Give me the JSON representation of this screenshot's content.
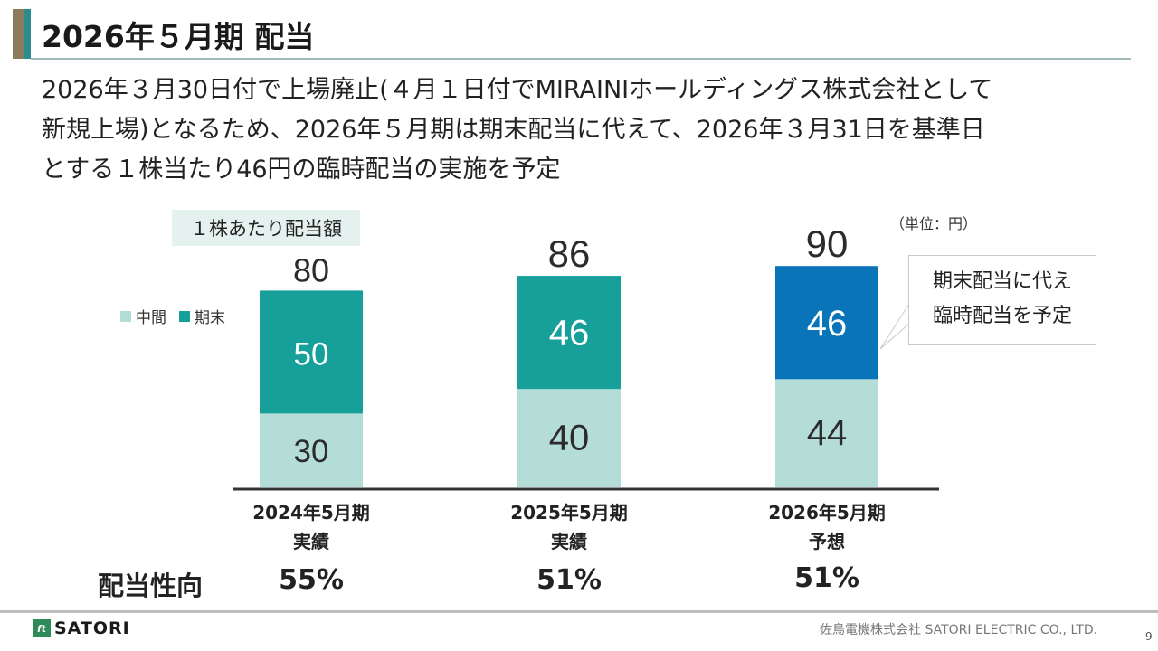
{
  "header": {
    "title": "2026年５月期 配当"
  },
  "lead_lines": [
    "2026年３月30日付で上場廃止(４月１日付でMIRAINIホールディングス株式会社として",
    "新規上場)となるため、2026年５月期は期末配当に代えて、2026年３月31日を基準日",
    "とする１株当たり46円の臨時配当の実施を予定"
  ],
  "chart_data": {
    "type": "bar",
    "stacked": true,
    "title": "１株あたり配当額",
    "unit_label": "（単位：円）",
    "categories": [
      [
        "2024年5月期",
        "実績"
      ],
      [
        "2025年5月期",
        "実績"
      ],
      [
        "2026年5月期",
        "予想"
      ]
    ],
    "series": [
      {
        "name": "中間",
        "values": [
          30,
          40,
          44
        ],
        "color": "#b5ddd8"
      },
      {
        "name": "期末",
        "values": [
          50,
          46,
          46
        ],
        "colors": [
          "#17a09a",
          "#17a09a",
          "#0a74b8"
        ]
      }
    ],
    "totals": [
      80,
      86,
      90
    ],
    "ylim": [
      0,
      100
    ],
    "callout": [
      "期末配当に代え",
      "臨時配当を予定"
    ],
    "payout_label": "配当性向",
    "payout_ratios": [
      "55%",
      "51%",
      "51%"
    ]
  },
  "legend": {
    "interim": "中間",
    "interim_color": "#b5ddd8",
    "final": "期末",
    "final_color": "#17a09a"
  },
  "footer": {
    "logo_text": "SATORI",
    "company": "佐鳥電機株式会社 SATORI ELECTRIC CO., LTD.",
    "page": "9"
  },
  "theme": {
    "text_dark": "#2b2b2b",
    "text_light": "#ffffff",
    "axis": "#333333"
  }
}
